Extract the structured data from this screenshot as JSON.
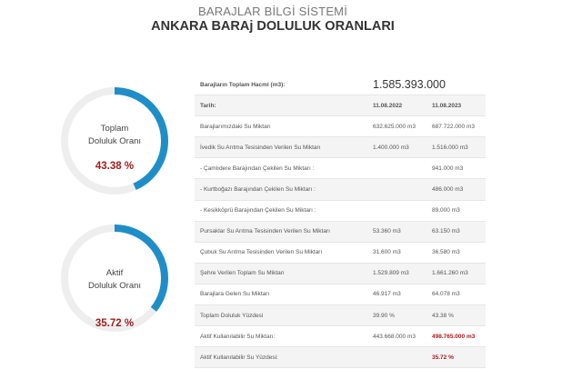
{
  "header": {
    "subtitle": "BARAJLAR BİLGİ SİSTEMİ",
    "title": "ANKARA BARAj DOLULUK ORANLARI"
  },
  "gauges": [
    {
      "label_line1": "Toplam",
      "label_line2": "Doluluk Oranı",
      "value": "43.38 %",
      "fraction": 0.4338
    },
    {
      "label_line1": "Aktif",
      "label_line2": "Doluluk Oranı",
      "value": "35.72 %",
      "fraction": 0.3572
    }
  ],
  "colors": {
    "gauge_fill": "#1f8ec8",
    "gauge_track": "#eeeeee",
    "highlight": "#b0161c"
  },
  "table": {
    "total_volume_label": "Barajların Toplam Hacmi (m3):",
    "total_volume_value": "1.585.393.000",
    "date_label": "Tarih:",
    "date_1": "11.08.2022",
    "date_2": "11.08.2023",
    "rows": [
      {
        "label": "Barajlarımızdaki Su Miktarı",
        "v1": "632.625.000 m3",
        "v2": "687.722.000 m3"
      },
      {
        "label": "İvedik Su Arıtma Tesisinden Verilen Su Miktarı",
        "v1": "1.400.000 m3",
        "v2": "1.516.000 m3"
      },
      {
        "label": "- Çamlıdere Barajından Çekilen Su Miktarı :",
        "v1": "",
        "v2": "941.000 m3"
      },
      {
        "label": "- Kurtboğazı Barajından Çekilen Su Miktarı :",
        "v1": "",
        "v2": "486.000 m3"
      },
      {
        "label": "- Kesikköprü Barajından Çekilen Su Miktarı :",
        "v1": "",
        "v2": "89.000 m3"
      },
      {
        "label": "Pursaklar Su Arıtma Tesisinden Verilen Su Miktarı",
        "v1": "53.360 m3",
        "v2": "63.150 m3"
      },
      {
        "label": "Çubuk Su Arıtma Tesisinden Verilen Su Miktarı",
        "v1": "31.600 m3",
        "v2": "36.580 m3"
      },
      {
        "label": "Şehre Verilen Toplam Su Miktarı",
        "v1": "1.529.809 m3",
        "v2": "1.661.260 m3"
      },
      {
        "label": "Barajlara Gelen Su Miktarı",
        "v1": "46.917 m3",
        "v2": "64.078 m3"
      },
      {
        "label": "Toplam Doluluk Yüzdesi",
        "v1": "39.90 %",
        "v2": "43.38 %"
      },
      {
        "label": "Aktif Kullanılabilir Su Miktarı:",
        "v1": "443.668.000 m3",
        "v2": "498.765.000 m3",
        "highlight_v2": true
      },
      {
        "label": "Aktif Kullanılabilir Su Yüzdesi:",
        "v1": "",
        "v2": "35.72 %",
        "highlight_v2": true
      }
    ]
  }
}
